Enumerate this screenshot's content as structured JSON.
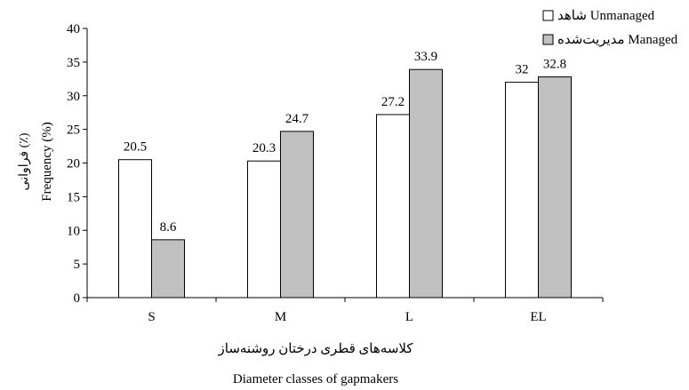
{
  "chart_data": {
    "type": "bar",
    "categories": [
      "S",
      "M",
      "L",
      "EL"
    ],
    "series": [
      {
        "name": "شاهد Unmanaged",
        "values": [
          20.5,
          20.3,
          27.2,
          32
        ],
        "labels": [
          "20.5",
          "20.3",
          "27.2",
          "32"
        ],
        "color": "#ffffff"
      },
      {
        "name": "مدیریت‌شده Managed",
        "values": [
          8.6,
          24.7,
          33.9,
          32.8
        ],
        "labels": [
          "8.6",
          "24.7",
          "33.9",
          "32.8"
        ],
        "color": "#c0c0c0"
      }
    ],
    "ylim": [
      0,
      40
    ],
    "yticks": [
      0,
      5,
      10,
      15,
      20,
      25,
      30,
      35,
      40
    ],
    "ylabel": "Frequency (%)",
    "ylabel_fa": "فراوانی (٪)",
    "xlabel": "Diameter classes of gapmakers",
    "xlabel_fa": "کلاسه‌های قطری درختان روشنه‌ساز",
    "legend_position": "top-right",
    "grid": false
  }
}
